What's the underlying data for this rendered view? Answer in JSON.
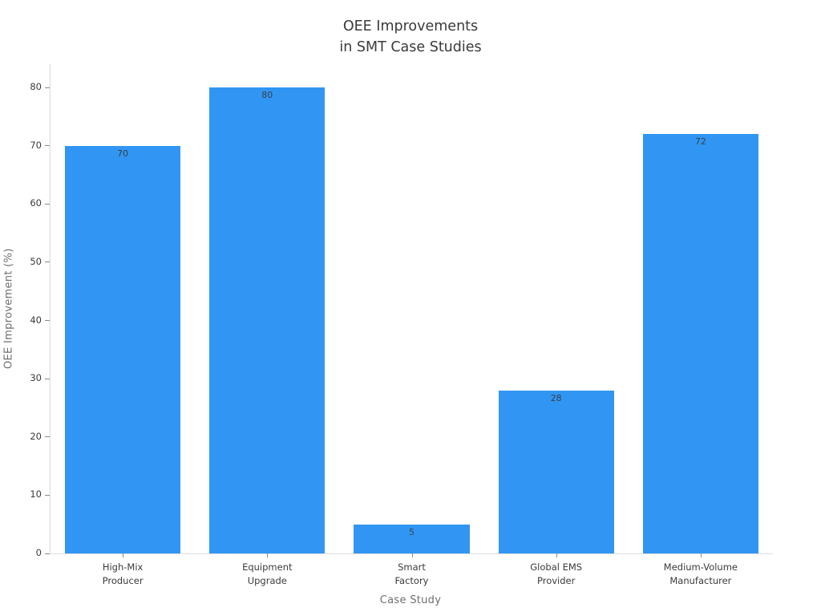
{
  "chart_data": {
    "type": "bar",
    "title": "OEE Improvements\nin SMT Case Studies",
    "xlabel": "Case Study",
    "ylabel": "OEE Improvement (%)",
    "categories": [
      "High-Mix\nProducer",
      "Equipment\nUpgrade",
      "Smart\nFactory",
      "Global EMS\nProvider",
      "Medium-Volume\nManufacturer"
    ],
    "values": [
      70,
      80,
      5,
      28,
      72
    ],
    "value_labels": [
      "70",
      "80",
      "5",
      "28",
      "72"
    ],
    "yticks": [
      0,
      10,
      20,
      30,
      40,
      50,
      60,
      70,
      80
    ],
    "ylim": [
      0,
      84
    ],
    "bar_color": "#3196f3",
    "bar_width_fraction": 0.8,
    "grid": false,
    "legend": null,
    "plot_background": "#ffffff",
    "axis_line_color": "#dcdcdc",
    "tick_color": "#8a8a8a"
  }
}
